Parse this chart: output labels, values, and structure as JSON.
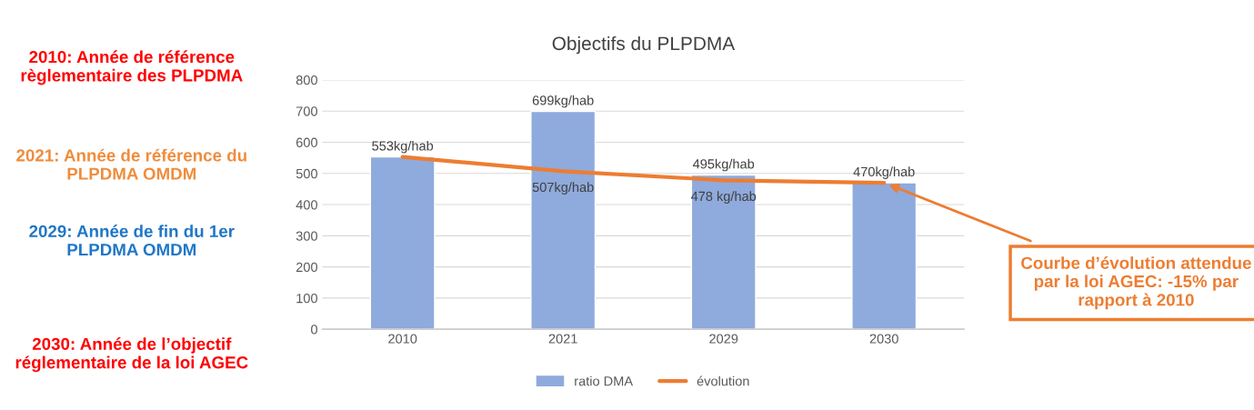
{
  "chart_data": {
    "type": "bar",
    "title": "Objectifs du PLPDMA",
    "categories": [
      "2010",
      "2021",
      "2029",
      "2030"
    ],
    "series": [
      {
        "name": "ratio DMA",
        "color": "#8faadc",
        "values": [
          553,
          699,
          495,
          470
        ],
        "value_labels": [
          "553kg/hab",
          "699kg/hab",
          "495kg/hab",
          "470kg/hab"
        ]
      },
      {
        "name": "évolution",
        "type": "line",
        "color": "#ed7d31",
        "values": [
          553,
          507,
          478,
          470
        ],
        "value_labels": [
          null,
          "507kg/hab",
          "478 kg/hab",
          null
        ]
      }
    ],
    "ylim": [
      0,
      800
    ],
    "yticks": [
      0,
      100,
      200,
      300,
      400,
      500,
      600,
      700,
      800
    ],
    "grid": "y",
    "legend": "bottom",
    "marker": "none",
    "line_style": "solid",
    "annotations": [
      "2010: Année de référence règlementaire des PLPDMA",
      "2021: Année de référence du PLPDMA OMDM",
      "2029: Année de fin du 1er PLPDMA OMDM",
      "2030: Année de l’objectif réglementaire de la loi AGEC",
      {
        "text": "Courbe d’évolution attendue par la loi AGEC: -15% par rapport à 2010",
        "x": "2030",
        "y": 470
      }
    ]
  }
}
